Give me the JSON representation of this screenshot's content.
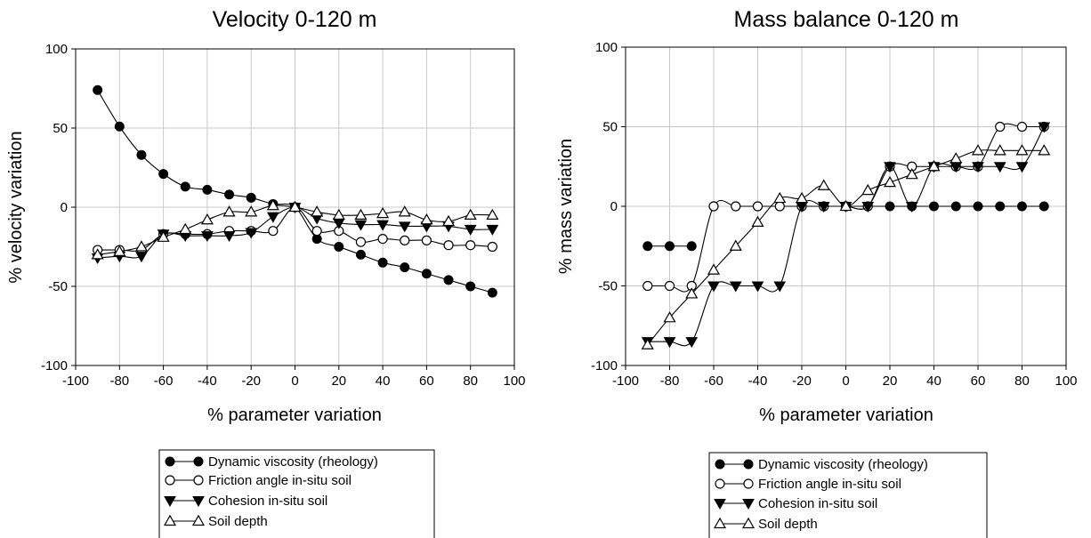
{
  "chart_data": [
    {
      "type": "line",
      "title": "Velocity 0-120 m",
      "xlabel": "% parameter variation",
      "ylabel": "% velocity variation",
      "xlim": [
        -100,
        100
      ],
      "ylim": [
        -100,
        100
      ],
      "xticks": [
        -100,
        -80,
        -60,
        -40,
        -20,
        0,
        20,
        40,
        60,
        80,
        100
      ],
      "yticks": [
        -100,
        -50,
        0,
        50,
        100
      ],
      "xtick_labels": [
        "-100",
        "-80",
        "-60",
        "-40",
        "-20",
        "0",
        "20",
        "40",
        "60",
        "80",
        "100"
      ],
      "ytick_labels": [
        "-100",
        "-50",
        "0",
        "50",
        "100"
      ],
      "grid": true,
      "legend_position": "below",
      "x": [
        -90,
        -80,
        -70,
        -60,
        -50,
        -40,
        -30,
        -20,
        -10,
        0,
        10,
        20,
        30,
        40,
        50,
        60,
        70,
        80,
        90
      ],
      "series": [
        {
          "name": "Dynamic viscosity (rheology)",
          "marker": "filled-circle",
          "values": [
            74,
            51,
            33,
            21,
            13,
            11,
            8,
            6,
            2,
            0,
            -20,
            -25,
            -30,
            -35,
            -38,
            -42,
            -46,
            -50,
            -54
          ]
        },
        {
          "name": "Friction angle in-situ soil",
          "marker": "open-circle",
          "values": [
            -27,
            -27,
            -27,
            -17,
            -17,
            -17,
            -15,
            -15,
            -15,
            0,
            -15,
            -15,
            -22,
            -20,
            -21,
            -21,
            -24,
            -24,
            -25
          ]
        },
        {
          "name": "Cohesion in-situ soil",
          "marker": "filled-triangle-down",
          "values": [
            -32,
            -31,
            -31,
            -17,
            -18,
            -18,
            -18,
            -16,
            -6,
            0,
            -7,
            -10,
            -11,
            -11,
            -12,
            -12,
            -12,
            -14,
            -14
          ]
        },
        {
          "name": "Soil depth",
          "marker": "open-triangle-up",
          "values": [
            -30,
            -28,
            -25,
            -19,
            -14,
            -8,
            -3,
            -3,
            1,
            0,
            -3,
            -5,
            -5,
            -4,
            -3,
            -8,
            -9,
            -5,
            -5
          ]
        }
      ]
    },
    {
      "type": "line",
      "title": "Mass balance 0-120 m",
      "xlabel": "% parameter variation",
      "ylabel": "% mass variation",
      "xlim": [
        -100,
        100
      ],
      "ylim": [
        -100,
        100
      ],
      "xticks": [
        -100,
        -80,
        -60,
        -40,
        -20,
        0,
        20,
        40,
        60,
        80,
        100
      ],
      "yticks": [
        -100,
        -50,
        0,
        50,
        100
      ],
      "xtick_labels": [
        "-100",
        "-80",
        "-60",
        "-40",
        "-20",
        "0",
        "20",
        "40",
        "60",
        "80",
        "100"
      ],
      "ytick_labels": [
        "-100",
        "-50",
        "0",
        "50",
        "100"
      ],
      "grid": true,
      "legend_position": "below",
      "x": [
        -90,
        -80,
        -70,
        -60,
        -50,
        -40,
        -30,
        -20,
        -10,
        0,
        10,
        20,
        30,
        40,
        50,
        60,
        70,
        80,
        90
      ],
      "series": [
        {
          "name": "Dynamic viscosity (rheology)",
          "marker": "filled-circle",
          "values": [
            -25,
            -25,
            -25,
            null,
            null,
            null,
            null,
            0,
            0,
            0,
            0,
            0,
            0,
            0,
            0,
            0,
            0,
            0,
            0
          ]
        },
        {
          "name": "Friction angle in-situ soil",
          "marker": "open-circle",
          "values": [
            -50,
            -50,
            -50,
            0,
            0,
            0,
            0,
            0,
            0,
            0,
            0,
            25,
            25,
            25,
            25,
            25,
            50,
            50,
            50
          ]
        },
        {
          "name": "Cohesion in-situ soil",
          "marker": "filled-triangle-down",
          "values": [
            -85,
            -85,
            -85,
            -50,
            -50,
            -50,
            -50,
            0,
            0,
            0,
            0,
            25,
            0,
            25,
            25,
            25,
            25,
            25,
            50
          ]
        },
        {
          "name": "Soil depth",
          "marker": "open-triangle-up",
          "values": [
            -87,
            -70,
            -55,
            -40,
            -25,
            -10,
            5,
            5,
            13,
            0,
            10,
            15,
            20,
            25,
            30,
            35,
            35,
            35,
            35
          ]
        }
      ]
    }
  ]
}
